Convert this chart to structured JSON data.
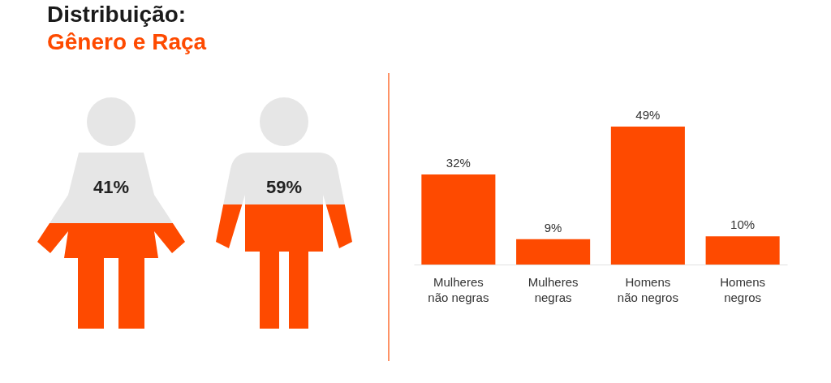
{
  "chart_data": [
    {
      "type": "other",
      "title": "Distribuição:",
      "subtitle": "Gênero e Raça",
      "annotations": [
        "41%",
        "59%"
      ]
    },
    {
      "type": "bar",
      "categories": [
        "Mulheres não negras",
        "Mulheres negras",
        "Homens não negros",
        "Homens negros"
      ],
      "values": [
        32,
        9,
        49,
        10
      ],
      "color": "#fe4a00",
      "value_labels": [
        "32%",
        "9%",
        "49%",
        "10%"
      ],
      "tick_labels": "x"
    }
  ]
}
